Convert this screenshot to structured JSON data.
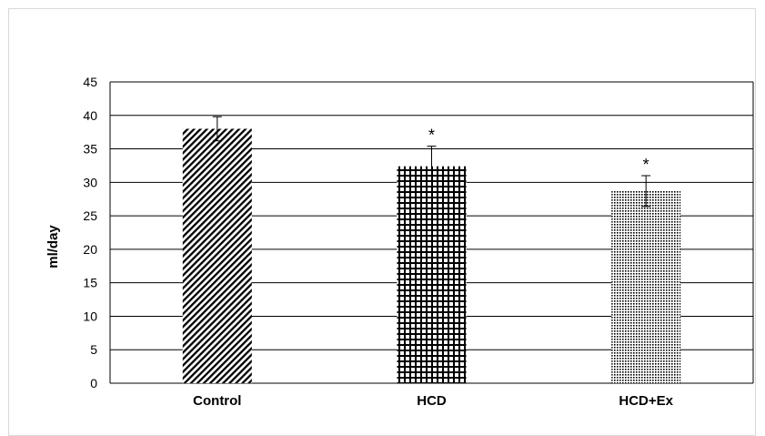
{
  "chart_data": {
    "type": "bar",
    "title": "",
    "xlabel": "",
    "ylabel": "ml/day",
    "ylim": [
      0,
      45
    ],
    "yticks": [
      0,
      5,
      10,
      15,
      20,
      25,
      30,
      35,
      40,
      45
    ],
    "grid": true,
    "categories": [
      "Control",
      "HCD",
      "HCD+Ex"
    ],
    "values": [
      38,
      32.4,
      28.7
    ],
    "errors": [
      1.8,
      3.0,
      2.3
    ],
    "annotations": [
      "",
      "*",
      "*"
    ],
    "patterns": [
      "diagonal-stripes",
      "grid-crosshatch",
      "dots"
    ],
    "colors": {
      "bar_pattern": "#000000",
      "bar_bg": "#ffffff",
      "grid": "#000000"
    }
  }
}
